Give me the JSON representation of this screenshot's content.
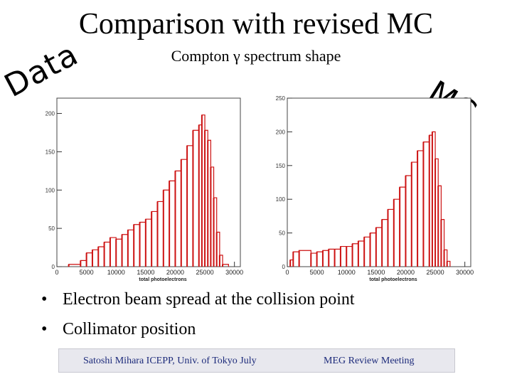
{
  "slide": {
    "title": "Comparison with revised MC",
    "subtitle": "Compton γ spectrum shape",
    "label_data": "Data",
    "label_mc": "MC",
    "bullets": [
      "Electron beam spread at the collision point",
      "Collimator position"
    ],
    "footer_left": "Satoshi Mihara ICEPP, Univ. of Tokyo July",
    "footer_right": "MEG Review Meeting"
  },
  "chart_data": [
    {
      "type": "bar",
      "name": "Data",
      "xlabel": "total photoelectrons",
      "ylabel": "",
      "xlim": [
        0,
        31000
      ],
      "ylim": [
        0,
        220
      ],
      "xticks": [
        0,
        5000,
        10000,
        15000,
        20000,
        25000,
        30000
      ],
      "yticks": [
        0,
        50,
        100,
        150,
        200
      ],
      "color": "#cc1111",
      "points": [
        [
          2000,
          3
        ],
        [
          4000,
          8
        ],
        [
          5000,
          18
        ],
        [
          6000,
          22
        ],
        [
          7000,
          26
        ],
        [
          8000,
          32
        ],
        [
          9000,
          38
        ],
        [
          10000,
          36
        ],
        [
          11000,
          42
        ],
        [
          12000,
          48
        ],
        [
          13000,
          55
        ],
        [
          14000,
          58
        ],
        [
          15000,
          62
        ],
        [
          16000,
          72
        ],
        [
          17000,
          85
        ],
        [
          18000,
          100
        ],
        [
          19000,
          112
        ],
        [
          20000,
          125
        ],
        [
          21000,
          140
        ],
        [
          22000,
          158
        ],
        [
          23000,
          178
        ],
        [
          24000,
          185
        ],
        [
          24500,
          198
        ],
        [
          25000,
          178
        ],
        [
          25500,
          165
        ],
        [
          26000,
          130
        ],
        [
          26500,
          90
        ],
        [
          27000,
          45
        ],
        [
          27500,
          15
        ],
        [
          28000,
          3
        ],
        [
          29000,
          0
        ]
      ]
    },
    {
      "type": "bar",
      "name": "MC",
      "xlabel": "total photoelectrons",
      "ylabel": "",
      "xlim": [
        0,
        31000
      ],
      "ylim": [
        0,
        250
      ],
      "xticks": [
        0,
        5000,
        10000,
        15000,
        20000,
        25000,
        30000
      ],
      "yticks": [
        0,
        50,
        100,
        150,
        200,
        250
      ],
      "color": "#cc1111",
      "points": [
        [
          500,
          10
        ],
        [
          1000,
          22
        ],
        [
          2000,
          24
        ],
        [
          4000,
          20
        ],
        [
          5000,
          22
        ],
        [
          6000,
          24
        ],
        [
          7000,
          26
        ],
        [
          8000,
          26
        ],
        [
          9000,
          30
        ],
        [
          10000,
          30
        ],
        [
          11000,
          34
        ],
        [
          12000,
          38
        ],
        [
          13000,
          44
        ],
        [
          14000,
          50
        ],
        [
          15000,
          58
        ],
        [
          16000,
          70
        ],
        [
          17000,
          85
        ],
        [
          18000,
          100
        ],
        [
          19000,
          118
        ],
        [
          20000,
          135
        ],
        [
          21000,
          155
        ],
        [
          22000,
          172
        ],
        [
          23000,
          185
        ],
        [
          24000,
          195
        ],
        [
          24500,
          200
        ],
        [
          25000,
          160
        ],
        [
          25500,
          120
        ],
        [
          26000,
          70
        ],
        [
          26500,
          25
        ],
        [
          27000,
          8
        ],
        [
          27500,
          0
        ]
      ]
    }
  ]
}
